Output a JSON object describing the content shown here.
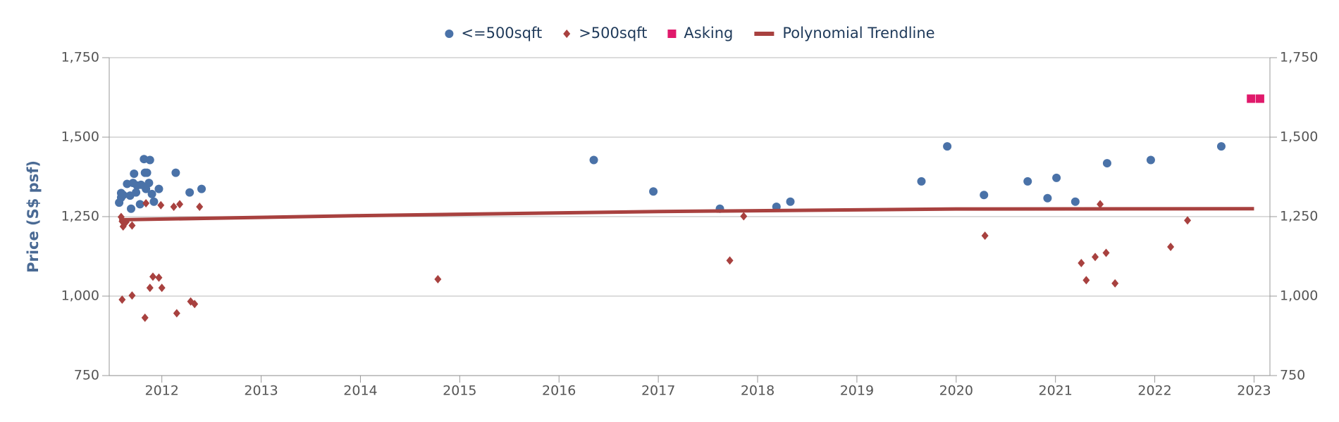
{
  "chart_data": {
    "type": "scatter",
    "y_label": "Price (S$ psf)",
    "xlim": [
      2011.47,
      2023.16
    ],
    "xticks": [
      2012,
      2013,
      2014,
      2015,
      2016,
      2017,
      2018,
      2019,
      2020,
      2021,
      2022,
      2023
    ],
    "ylim": [
      750,
      1750
    ],
    "yticks": [
      {
        "value": 750,
        "label": "750"
      },
      {
        "value": 1000,
        "label": "1,000"
      },
      {
        "value": 1250,
        "label": "1,250"
      },
      {
        "value": 1500,
        "label": "1,500"
      },
      {
        "value": 1750,
        "label": "1,750"
      }
    ],
    "y2lim": [
      750,
      1750
    ],
    "y2ticks": [
      {
        "value": 750,
        "label": "750"
      },
      {
        "value": 1000,
        "label": "1,000"
      },
      {
        "value": 1250,
        "label": "1,250"
      },
      {
        "value": 1500,
        "label": "1,500"
      },
      {
        "value": 1750,
        "label": "1,750"
      }
    ],
    "grid": true,
    "legend": "top",
    "series": [
      {
        "name": "<=500sqft",
        "color": "#4a72a8",
        "marker": "circle",
        "x": [
          2011.57,
          2011.59,
          2011.59,
          2011.61,
          2011.65,
          2011.68,
          2011.69,
          2011.71,
          2011.72,
          2011.74,
          2011.75,
          2011.78,
          2011.79,
          2011.82,
          2011.83,
          2011.84,
          2011.85,
          2011.87,
          2011.88,
          2011.9,
          2011.92,
          2011.97,
          2012.14,
          2012.28,
          2012.4,
          2016.35,
          2016.95,
          2017.62,
          2018.19,
          2018.33,
          2019.65,
          2019.91,
          2020.28,
          2020.72,
          2020.92,
          2021.01,
          2021.2,
          2021.52,
          2021.96,
          2022.67
        ],
        "values": [
          1294,
          1310,
          1324,
          1318,
          1353,
          1316,
          1275,
          1356,
          1385,
          1326,
          1348,
          1289,
          1350,
          1431,
          1388,
          1337,
          1388,
          1356,
          1428,
          1321,
          1297,
          1337,
          1388,
          1326,
          1337,
          1428,
          1329,
          1275,
          1281,
          1297,
          1361,
          1471,
          1318,
          1361,
          1308,
          1372,
          1297,
          1418,
          1428,
          1471
        ]
      },
      {
        "name": ">500sqft",
        "color": "#a8413f",
        "marker": "diamond",
        "x": [
          2011.59,
          2011.6,
          2011.61,
          2011.6,
          2011.64,
          2011.7,
          2011.7,
          2011.83,
          2011.84,
          2011.88,
          2011.91,
          2011.97,
          2012.0,
          2011.99,
          2012.12,
          2012.15,
          2012.18,
          2012.29,
          2012.33,
          2012.38,
          2014.78,
          2017.72,
          2017.86,
          2020.29,
          2021.26,
          2021.31,
          2021.4,
          2021.45,
          2021.51,
          2021.6,
          2022.16,
          2022.33
        ],
        "values": [
          1249,
          1235,
          1219,
          989,
          1233,
          1222,
          1002,
          932,
          1292,
          1026,
          1061,
          1058,
          1026,
          1286,
          1281,
          946,
          1289,
          983,
          975,
          1281,
          1053,
          1112,
          1251,
          1190,
          1104,
          1050,
          1123,
          1289,
          1136,
          1040,
          1155,
          1238
        ]
      },
      {
        "name": "Asking",
        "color": "#e0196b",
        "marker": "square",
        "x": [
          2022.97,
          2023.06
        ],
        "values": [
          1621,
          1621
        ]
      },
      {
        "name": "Polynomial Trendline",
        "color": "#a8413f",
        "marker": "line",
        "x": [
          2011.57,
          2014,
          2017,
          2020,
          2023
        ],
        "values": [
          1240,
          1253,
          1266,
          1274,
          1275
        ]
      }
    ]
  }
}
